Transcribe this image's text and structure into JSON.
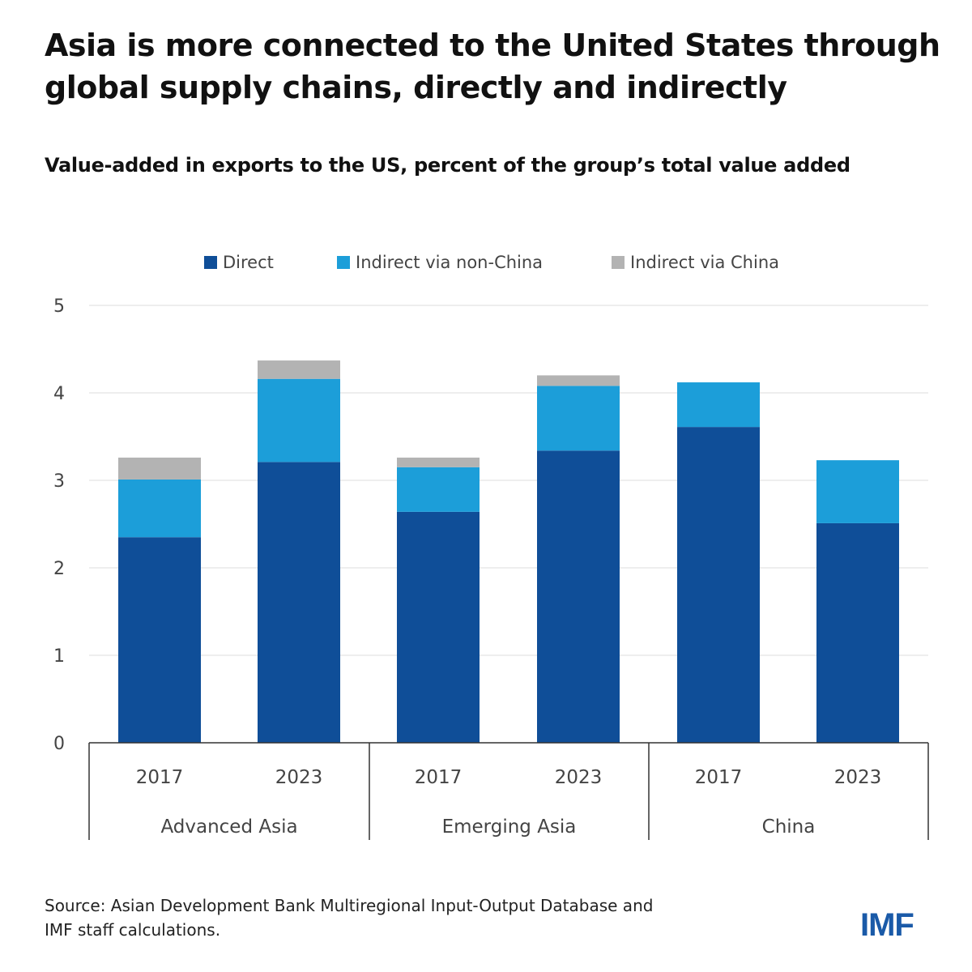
{
  "title": "Asia is more connected to the United States through global supply chains, directly and indirectly",
  "subtitle": "Value-added in exports to the US, percent of the group’s total value added",
  "source": "Source: Asian Development Bank Multiregional Input-Output Database and\nIMF staff calculations.",
  "logo": "IMF",
  "colors": {
    "direct": "#0f4e98",
    "indirect_non_china": "#1c9ed9",
    "indirect_china": "#b3b3b3",
    "grid": "#dddddd",
    "axis": "#333333",
    "label": "#444444"
  },
  "chart_data": {
    "type": "bar",
    "stacked": true,
    "legend_position": "top",
    "grid": true,
    "ylim": [
      0,
      5
    ],
    "yticks": [
      0,
      1,
      2,
      3,
      4,
      5
    ],
    "groups": [
      {
        "name": "Advanced Asia",
        "categories": [
          "2017",
          "2023"
        ]
      },
      {
        "name": "Emerging Asia",
        "categories": [
          "2017",
          "2023"
        ]
      },
      {
        "name": "China",
        "categories": [
          "2017",
          "2023"
        ]
      }
    ],
    "categories": [
      "2017",
      "2023",
      "2017",
      "2023",
      "2017",
      "2023"
    ],
    "series": [
      {
        "name": "Direct",
        "values": [
          2.35,
          3.21,
          2.64,
          3.34,
          3.61,
          2.51
        ]
      },
      {
        "name": "Indirect via non-China",
        "values": [
          0.66,
          0.95,
          0.51,
          0.74,
          0.51,
          0.72
        ]
      },
      {
        "name": "Indirect via China",
        "values": [
          0.25,
          0.21,
          0.11,
          0.12,
          0,
          0
        ]
      }
    ]
  }
}
